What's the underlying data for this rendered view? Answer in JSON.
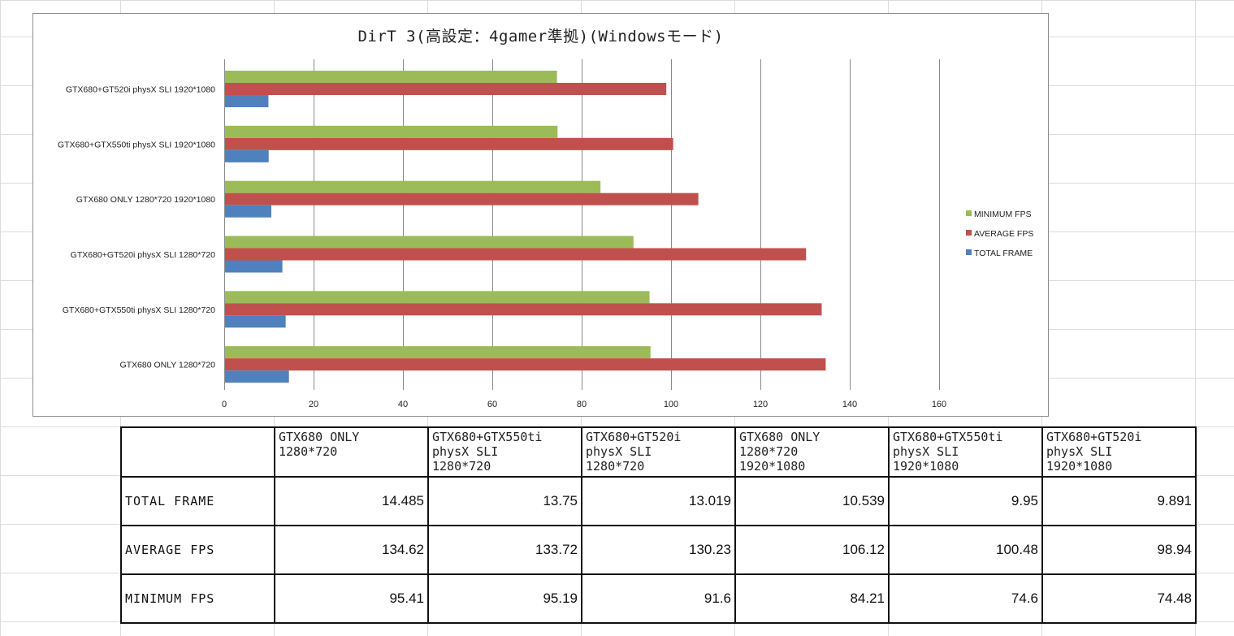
{
  "chart_data": {
    "type": "bar",
    "orientation": "horizontal",
    "title": "DirT 3(高設定：4gamer準拠)(Windowsモード)",
    "categories": [
      "GTX680+GT520i physX SLI 1920*1080",
      "GTX680+GTX550ti physX SLI 1920*1080",
      "GTX680 ONLY 1280*720 1920*1080",
      "GTX680+GT520i physX SLI 1280*720",
      "GTX680+GTX550ti physX SLI 1280*720",
      "GTX680 ONLY 1280*720"
    ],
    "series": [
      {
        "name": "MINIMUM FPS",
        "color": "#9bbb59",
        "values": [
          74.48,
          74.6,
          84.21,
          91.6,
          95.19,
          95.41
        ]
      },
      {
        "name": "AVERAGE FPS",
        "color": "#c0504d",
        "values": [
          98.94,
          100.48,
          106.12,
          130.23,
          133.72,
          134.62
        ]
      },
      {
        "name": "TOTAL FRAME",
        "color": "#4f81bd",
        "values": [
          9.891,
          9.95,
          10.539,
          13.019,
          13.75,
          14.485
        ]
      }
    ],
    "xlim": [
      0,
      160
    ],
    "xticks": [
      "0",
      "20",
      "40",
      "60",
      "80",
      "100",
      "120",
      "140",
      "160"
    ],
    "grid": "vertical",
    "legend_position": "right"
  },
  "table": {
    "columns": [
      "",
      "GTX680 ONLY\n1280*720",
      "GTX680+GTX550ti\nphysX SLI\n1280*720",
      "GTX680+GT520i\nphysX SLI\n1280*720",
      "GTX680 ONLY\n1280*720\n1920*1080",
      "GTX680+GTX550ti\nphysX SLI\n1920*1080",
      "GTX680+GT520i\nphysX SLI\n1920*1080"
    ],
    "rows": [
      {
        "label": "TOTAL FRAME",
        "values": [
          "14.485",
          "13.75",
          "13.019",
          "10.539",
          "9.95",
          "9.891"
        ]
      },
      {
        "label": "AVERAGE FPS",
        "values": [
          "134.62",
          "133.72",
          "130.23",
          "106.12",
          "100.48",
          "98.94"
        ]
      },
      {
        "label": "MINIMUM FPS",
        "values": [
          "95.41",
          "95.19",
          "91.6",
          "84.21",
          "74.6",
          "74.48"
        ]
      }
    ]
  }
}
